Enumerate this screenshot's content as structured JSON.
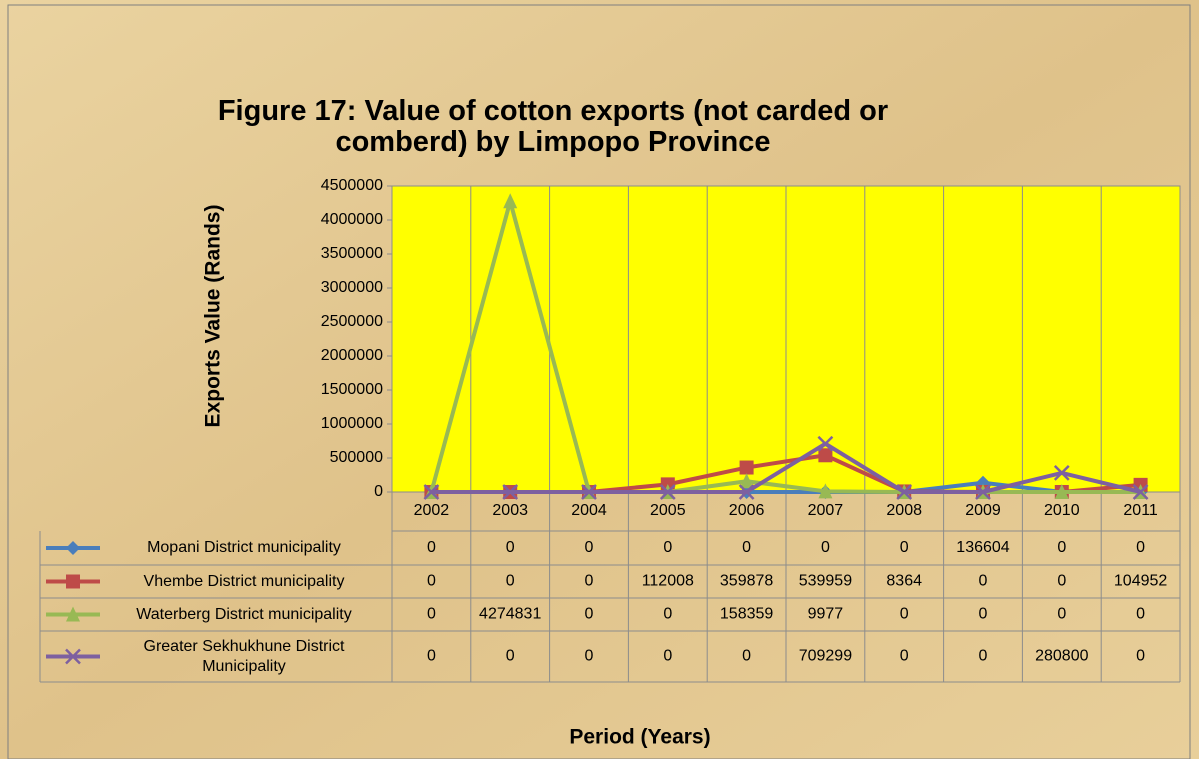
{
  "chart_data": {
    "type": "line",
    "title": "Figure 17: Value of cotton exports (not carded or comberd) by Limpopo Province",
    "y_label": "Exports Value (Rands)",
    "x_label": "Period (Years)",
    "categories": [
      "2002",
      "2003",
      "2004",
      "2005",
      "2006",
      "2007",
      "2008",
      "2009",
      "2010",
      "2011"
    ],
    "series": [
      {
        "name": "Mopani District municipality",
        "color": "#4a7ebb",
        "marker": "diamond",
        "values": [
          0,
          0,
          0,
          0,
          0,
          0,
          0,
          136604,
          0,
          0
        ]
      },
      {
        "name": "Vhembe District municipality",
        "color": "#be4b48",
        "marker": "square",
        "values": [
          0,
          0,
          0,
          112008,
          359878,
          539959,
          8364,
          0,
          0,
          104952
        ]
      },
      {
        "name": "Waterberg District municipality",
        "color": "#98b954",
        "marker": "triangle",
        "values": [
          0,
          4274831,
          0,
          0,
          158359,
          9977,
          0,
          0,
          0,
          0
        ]
      },
      {
        "name": "Greater Sekhukhune District Municipality",
        "color": "#7d60a0",
        "marker": "x",
        "values": [
          0,
          0,
          0,
          0,
          0,
          709299,
          0,
          0,
          280800,
          0
        ]
      }
    ],
    "ylim": [
      0,
      4500000
    ],
    "yticks": [
      0,
      500000,
      1000000,
      1500000,
      2000000,
      2500000,
      3000000,
      3500000,
      4000000,
      4500000
    ],
    "plot_background": "#ffff00",
    "data_table": true
  }
}
